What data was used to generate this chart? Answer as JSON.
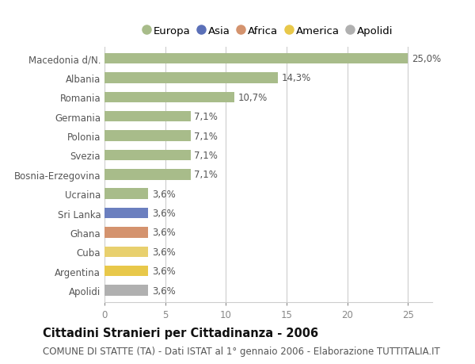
{
  "categories": [
    "Macedonia d/N.",
    "Albania",
    "Romania",
    "Germania",
    "Polonia",
    "Svezia",
    "Bosnia-Erzegovina",
    "Ucraina",
    "Sri Lanka",
    "Ghana",
    "Cuba",
    "Argentina",
    "Apolidi"
  ],
  "values": [
    25.0,
    14.3,
    10.7,
    7.1,
    7.1,
    7.1,
    7.1,
    3.6,
    3.6,
    3.6,
    3.6,
    3.6,
    3.6
  ],
  "labels": [
    "25,0%",
    "14,3%",
    "10,7%",
    "7,1%",
    "7,1%",
    "7,1%",
    "7,1%",
    "3,6%",
    "3,6%",
    "3,6%",
    "3,6%",
    "3,6%",
    "3,6%"
  ],
  "colors": [
    "#a8bc8a",
    "#a8bc8a",
    "#a8bc8a",
    "#a8bc8a",
    "#a8bc8a",
    "#a8bc8a",
    "#a8bc8a",
    "#a8bc8a",
    "#6b7fbf",
    "#d4936e",
    "#e8d06e",
    "#e8c84a",
    "#b0b0b0"
  ],
  "legend": [
    {
      "label": "Europa",
      "color": "#a8bc8a"
    },
    {
      "label": "Asia",
      "color": "#5b70b8"
    },
    {
      "label": "Africa",
      "color": "#d4936e"
    },
    {
      "label": "America",
      "color": "#e8c84a"
    },
    {
      "label": "Apolidi",
      "color": "#b0b0b0"
    }
  ],
  "xlim": [
    0,
    27
  ],
  "xticks": [
    0,
    5,
    10,
    15,
    20,
    25
  ],
  "title": "Cittadini Stranieri per Cittadinanza - 2006",
  "subtitle": "COMUNE DI STATTE (TA) - Dati ISTAT al 1° gennaio 2006 - Elaborazione TUTTITALIA.IT",
  "bg_color": "#ffffff",
  "plot_bg_color": "#f5f5f5",
  "grid_color": "#cccccc",
  "bar_height": 0.55,
  "label_fontsize": 8.5,
  "title_fontsize": 10.5,
  "subtitle_fontsize": 8.5,
  "ytick_fontsize": 8.5,
  "xtick_fontsize": 8.5,
  "legend_fontsize": 9.5
}
